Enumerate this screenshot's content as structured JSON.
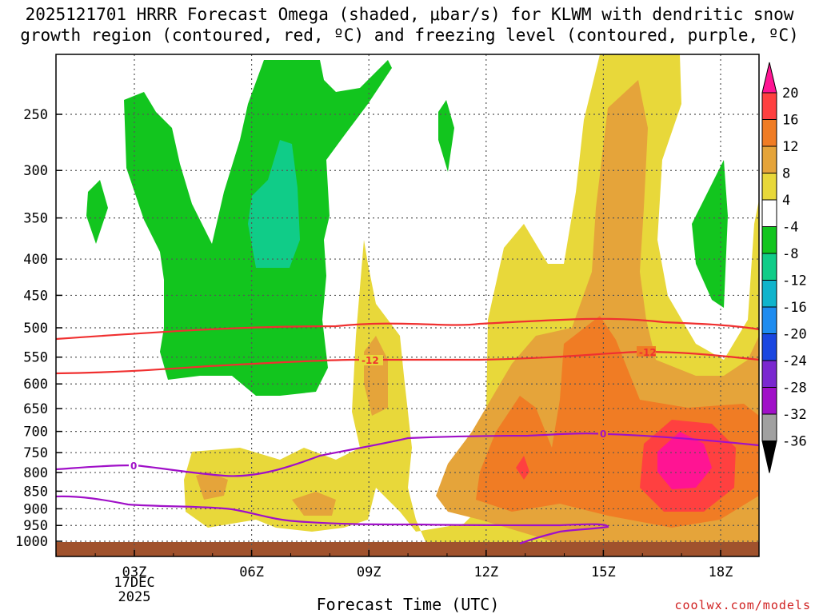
{
  "title_line1": "2025121701 HRRR Forecast Omega (shaded, μbar/s) for KLWM with dendritic snow",
  "title_line2": "growth region (contoured, red, ºC) and freezing level (contoured, purple, ºC)",
  "credit": "coolwx.com/models",
  "chart_data": {
    "type": "contour",
    "title": "2025121701 HRRR Forecast Omega (shaded, μbar/s) for KLWM with dendritic snow growth region (contoured, red, ºC) and freezing level (contoured, purple, ºC)",
    "xlabel": "Forecast Time (UTC)",
    "ylabel": "",
    "x_range_hours": [
      1,
      19
    ],
    "x_ticks": [
      {
        "hour": 3,
        "label": "03Z"
      },
      {
        "hour": 6,
        "label": "06Z"
      },
      {
        "hour": 9,
        "label": "09Z"
      },
      {
        "hour": 12,
        "label": "12Z"
      },
      {
        "hour": 15,
        "label": "15Z"
      },
      {
        "hour": 18,
        "label": "18Z"
      }
    ],
    "date_label": {
      "hour": 3,
      "day": "17DEC",
      "year": "2025"
    },
    "y_ticks_hpa": [
      250,
      300,
      350,
      400,
      450,
      500,
      550,
      600,
      650,
      700,
      750,
      800,
      850,
      900,
      950,
      1000
    ],
    "colorbar": {
      "labels": [
        20,
        16,
        12,
        8,
        4,
        -4,
        -8,
        -12,
        -16,
        -20,
        -24,
        -28,
        -32,
        -36
      ],
      "colors": [
        "#ff1493",
        "#ff4040",
        "#f07c24",
        "#e5a43a",
        "#e8d83a",
        "#ffffff",
        "#12c51e",
        "#10cc88",
        "#10b4cc",
        "#1e8cf0",
        "#1a46e0",
        "#7a28d0",
        "#a010c8",
        "#a0a0a0",
        "#000000"
      ]
    },
    "contours": {
      "dendritic_red": [
        {
          "label": "-12",
          "label_positions": [
            {
              "hour": 9,
              "hpa": 560
            },
            {
              "hour": 16,
              "hpa": 545
            }
          ]
        }
      ],
      "freezing_purple": [
        {
          "label": "0",
          "label_positions": [
            {
              "hour": 3,
              "hpa": 785
            },
            {
              "hour": 15,
              "hpa": 705
            }
          ]
        }
      ]
    }
  }
}
